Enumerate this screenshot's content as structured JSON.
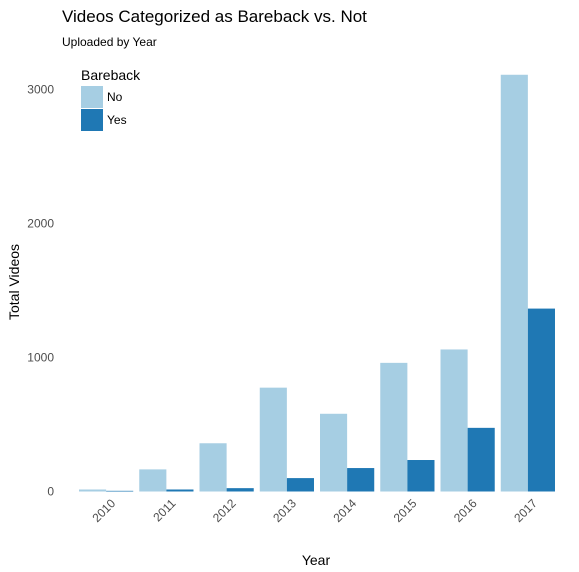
{
  "chart_data": {
    "type": "bar",
    "title": "Videos Categorized as Bareback vs. Not",
    "subtitle": "Uploaded by Year",
    "xlabel": "Year",
    "ylabel": "Total Videos",
    "categories": [
      "2010",
      "2011",
      "2012",
      "2013",
      "2014",
      "2015",
      "2016",
      "2017"
    ],
    "series": [
      {
        "name": "No",
        "color": "#a6cee3",
        "values": [
          15,
          165,
          360,
          775,
          580,
          960,
          1060,
          3110
        ]
      },
      {
        "name": "Yes",
        "color": "#1f78b4",
        "values": [
          5,
          15,
          25,
          100,
          175,
          235,
          475,
          1365
        ]
      }
    ],
    "ylim": [
      0,
      3100
    ],
    "yticks": [
      0,
      1000,
      2000,
      3000
    ],
    "legend": {
      "title": "Bareback",
      "placement": "top-left"
    },
    "grid": false
  }
}
